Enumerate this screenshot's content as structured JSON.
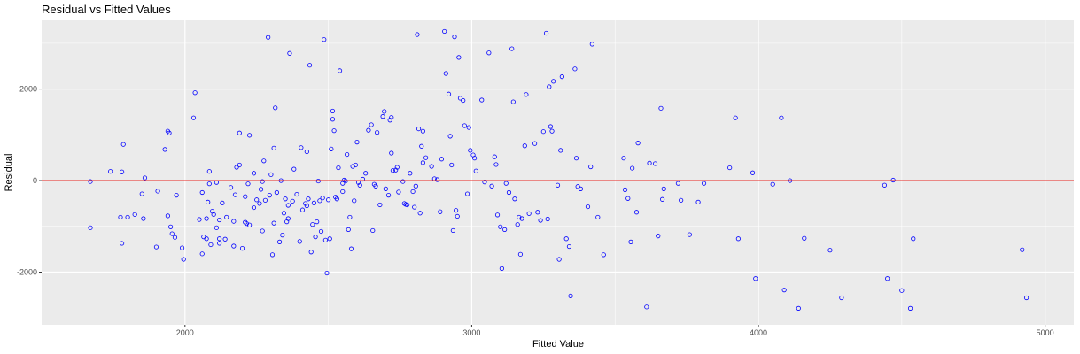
{
  "chart_data": {
    "type": "scatter",
    "title": "Residual vs Fitted Values",
    "xlabel": "Fitted Value",
    "ylabel": "Residual",
    "xlim": [
      1500,
      5100
    ],
    "ylim": [
      -3150,
      3500
    ],
    "x_ticks": [
      2000,
      3000,
      4000,
      5000
    ],
    "x_tick_labels": [
      "2000",
      "3000",
      "4000",
      "5000"
    ],
    "y_ticks": [
      -2000,
      0,
      2000
    ],
    "y_tick_labels": [
      "-2000",
      "0",
      "2000"
    ],
    "grid": true,
    "legend": "none",
    "reference_line": {
      "y": 0,
      "color": "#e8231e"
    },
    "colors": {
      "points": "#0000ff",
      "reference_line": "#e8231e",
      "panel": "#ebebeb",
      "grid": "#ffffff"
    },
    "points": [
      [
        1670,
        -20
      ],
      [
        1670,
        -1030
      ],
      [
        1740,
        200
      ],
      [
        1780,
        190
      ],
      [
        1775,
        -800
      ],
      [
        1780,
        -1370
      ],
      [
        1785,
        790
      ],
      [
        1800,
        -800
      ],
      [
        1825,
        -740
      ],
      [
        1850,
        -290
      ],
      [
        1855,
        -830
      ],
      [
        1860,
        60
      ],
      [
        1900,
        -1450
      ],
      [
        1905,
        -230
      ],
      [
        1930,
        680
      ],
      [
        1940,
        1080
      ],
      [
        1945,
        1040
      ],
      [
        1940,
        -770
      ],
      [
        1950,
        -1010
      ],
      [
        1955,
        -1160
      ],
      [
        1965,
        -1240
      ],
      [
        1970,
        -320
      ],
      [
        1990,
        -1470
      ],
      [
        1995,
        -1720
      ],
      [
        2030,
        1370
      ],
      [
        2035,
        1920
      ],
      [
        2050,
        -850
      ],
      [
        2060,
        -260
      ],
      [
        2060,
        -1600
      ],
      [
        2065,
        -1230
      ],
      [
        2075,
        -830
      ],
      [
        2075,
        -1270
      ],
      [
        2080,
        -470
      ],
      [
        2085,
        -70
      ],
      [
        2085,
        200
      ],
      [
        2090,
        -1400
      ],
      [
        2095,
        -670
      ],
      [
        2100,
        -740
      ],
      [
        2110,
        -1030
      ],
      [
        2110,
        -40
      ],
      [
        2120,
        -860
      ],
      [
        2120,
        -1370
      ],
      [
        2120,
        -1270
      ],
      [
        2130,
        -490
      ],
      [
        2140,
        -1280
      ],
      [
        2145,
        -800
      ],
      [
        2160,
        -150
      ],
      [
        2170,
        -1430
      ],
      [
        2170,
        -890
      ],
      [
        2175,
        -310
      ],
      [
        2180,
        290
      ],
      [
        2190,
        340
      ],
      [
        2190,
        1040
      ],
      [
        2200,
        -1480
      ],
      [
        2210,
        -910
      ],
      [
        2210,
        -350
      ],
      [
        2215,
        -940
      ],
      [
        2220,
        -70
      ],
      [
        2225,
        990
      ],
      [
        2225,
        -970
      ],
      [
        2240,
        160
      ],
      [
        2240,
        -590
      ],
      [
        2250,
        -420
      ],
      [
        2260,
        -500
      ],
      [
        2265,
        -190
      ],
      [
        2270,
        -1100
      ],
      [
        2270,
        -20
      ],
      [
        2275,
        430
      ],
      [
        2280,
        -430
      ],
      [
        2290,
        3130
      ],
      [
        2295,
        -320
      ],
      [
        2300,
        130
      ],
      [
        2305,
        -1620
      ],
      [
        2310,
        710
      ],
      [
        2310,
        -930
      ],
      [
        2315,
        1590
      ],
      [
        2320,
        -260
      ],
      [
        2330,
        -1340
      ],
      [
        2335,
        0
      ],
      [
        2340,
        -1190
      ],
      [
        2345,
        -710
      ],
      [
        2350,
        -400
      ],
      [
        2355,
        -900
      ],
      [
        2360,
        -830
      ],
      [
        2365,
        2780
      ],
      [
        2360,
        -540
      ],
      [
        2375,
        -450
      ],
      [
        2380,
        250
      ],
      [
        2390,
        -300
      ],
      [
        2400,
        -1330
      ],
      [
        2405,
        720
      ],
      [
        2410,
        -640
      ],
      [
        2420,
        -500
      ],
      [
        2425,
        -550
      ],
      [
        2425,
        630
      ],
      [
        2430,
        -400
      ],
      [
        2435,
        2520
      ],
      [
        2440,
        -1560
      ],
      [
        2445,
        -960
      ],
      [
        2450,
        -490
      ],
      [
        2455,
        -1230
      ],
      [
        2460,
        -900
      ],
      [
        2465,
        -10
      ],
      [
        2470,
        -440
      ],
      [
        2475,
        -1110
      ],
      [
        2480,
        -380
      ],
      [
        2485,
        3080
      ],
      [
        2490,
        -1300
      ],
      [
        2495,
        -2020
      ],
      [
        2500,
        -420
      ],
      [
        2505,
        -1270
      ],
      [
        2510,
        690
      ],
      [
        2515,
        1520
      ],
      [
        2515,
        1340
      ],
      [
        2520,
        1090
      ],
      [
        2525,
        -360
      ],
      [
        2530,
        -400
      ],
      [
        2535,
        280
      ],
      [
        2540,
        2400
      ],
      [
        2550,
        -240
      ],
      [
        2550,
        -60
      ],
      [
        2555,
        10
      ],
      [
        2560,
        -10
      ],
      [
        2565,
        570
      ],
      [
        2570,
        -1070
      ],
      [
        2575,
        -800
      ],
      [
        2580,
        -1490
      ],
      [
        2585,
        310
      ],
      [
        2590,
        -440
      ],
      [
        2595,
        340
      ],
      [
        2600,
        840
      ],
      [
        2605,
        -40
      ],
      [
        2610,
        -100
      ],
      [
        2620,
        30
      ],
      [
        2630,
        160
      ],
      [
        2640,
        1100
      ],
      [
        2650,
        1220
      ],
      [
        2655,
        -1090
      ],
      [
        2660,
        -80
      ],
      [
        2665,
        -120
      ],
      [
        2670,
        1050
      ],
      [
        2680,
        -530
      ],
      [
        2690,
        1400
      ],
      [
        2695,
        1510
      ],
      [
        2700,
        -180
      ],
      [
        2710,
        -320
      ],
      [
        2715,
        1320
      ],
      [
        2720,
        1380
      ],
      [
        2720,
        600
      ],
      [
        2725,
        220
      ],
      [
        2735,
        230
      ],
      [
        2740,
        290
      ],
      [
        2745,
        -250
      ],
      [
        2760,
        -20
      ],
      [
        2765,
        -500
      ],
      [
        2770,
        -520
      ],
      [
        2775,
        -530
      ],
      [
        2785,
        160
      ],
      [
        2795,
        -240
      ],
      [
        2800,
        -580
      ],
      [
        2805,
        -120
      ],
      [
        2810,
        3190
      ],
      [
        2815,
        1130
      ],
      [
        2820,
        -710
      ],
      [
        2825,
        750
      ],
      [
        2830,
        1080
      ],
      [
        2830,
        390
      ],
      [
        2840,
        500
      ],
      [
        2860,
        310
      ],
      [
        2870,
        40
      ],
      [
        2880,
        20
      ],
      [
        2890,
        -680
      ],
      [
        2895,
        470
      ],
      [
        2905,
        3260
      ],
      [
        2910,
        2340
      ],
      [
        2920,
        1890
      ],
      [
        2925,
        970
      ],
      [
        2930,
        340
      ],
      [
        2935,
        -1090
      ],
      [
        2940,
        3140
      ],
      [
        2945,
        -650
      ],
      [
        2950,
        -780
      ],
      [
        2955,
        2690
      ],
      [
        2960,
        1800
      ],
      [
        2970,
        1750
      ],
      [
        2975,
        1200
      ],
      [
        2985,
        -290
      ],
      [
        2990,
        1160
      ],
      [
        2995,
        660
      ],
      [
        3005,
        560
      ],
      [
        3010,
        490
      ],
      [
        3015,
        210
      ],
      [
        3035,
        1760
      ],
      [
        3045,
        -30
      ],
      [
        3060,
        2790
      ],
      [
        3070,
        -120
      ],
      [
        3080,
        520
      ],
      [
        3085,
        350
      ],
      [
        3090,
        -750
      ],
      [
        3100,
        -1010
      ],
      [
        3105,
        -1920
      ],
      [
        3115,
        -1070
      ],
      [
        3120,
        -60
      ],
      [
        3130,
        -260
      ],
      [
        3140,
        2880
      ],
      [
        3145,
        1720
      ],
      [
        3150,
        -400
      ],
      [
        3160,
        -960
      ],
      [
        3165,
        -800
      ],
      [
        3170,
        -1610
      ],
      [
        3175,
        -830
      ],
      [
        3185,
        760
      ],
      [
        3190,
        1880
      ],
      [
        3200,
        -720
      ],
      [
        3220,
        810
      ],
      [
        3230,
        -690
      ],
      [
        3240,
        -870
      ],
      [
        3250,
        1070
      ],
      [
        3260,
        3220
      ],
      [
        3265,
        -840
      ],
      [
        3270,
        2050
      ],
      [
        3275,
        1180
      ],
      [
        3280,
        1080
      ],
      [
        3285,
        2170
      ],
      [
        3300,
        -100
      ],
      [
        3305,
        -1720
      ],
      [
        3310,
        660
      ],
      [
        3315,
        2270
      ],
      [
        3330,
        -1270
      ],
      [
        3340,
        -1440
      ],
      [
        3345,
        -2520
      ],
      [
        3360,
        2440
      ],
      [
        3365,
        490
      ],
      [
        3370,
        -130
      ],
      [
        3380,
        -180
      ],
      [
        3405,
        -570
      ],
      [
        3415,
        300
      ],
      [
        3420,
        2980
      ],
      [
        3440,
        -800
      ],
      [
        3460,
        -1620
      ],
      [
        3530,
        490
      ],
      [
        3535,
        -200
      ],
      [
        3545,
        -390
      ],
      [
        3555,
        -1340
      ],
      [
        3560,
        270
      ],
      [
        3575,
        -690
      ],
      [
        3580,
        820
      ],
      [
        3610,
        -2760
      ],
      [
        3620,
        380
      ],
      [
        3640,
        370
      ],
      [
        3650,
        -1210
      ],
      [
        3660,
        1580
      ],
      [
        3665,
        -410
      ],
      [
        3670,
        -180
      ],
      [
        3720,
        -60
      ],
      [
        3730,
        -430
      ],
      [
        3760,
        -1180
      ],
      [
        3790,
        -470
      ],
      [
        3810,
        -60
      ],
      [
        3900,
        280
      ],
      [
        3920,
        1370
      ],
      [
        3930,
        -1270
      ],
      [
        3980,
        170
      ],
      [
        3990,
        -2140
      ],
      [
        4050,
        -80
      ],
      [
        4080,
        1370
      ],
      [
        4090,
        -2390
      ],
      [
        4110,
        0
      ],
      [
        4140,
        -2790
      ],
      [
        4160,
        -1260
      ],
      [
        4250,
        -1520
      ],
      [
        4290,
        -2560
      ],
      [
        4920,
        -1510
      ],
      [
        4935,
        -2560
      ],
      [
        4440,
        -100
      ],
      [
        4450,
        -2140
      ],
      [
        4470,
        10
      ],
      [
        4500,
        -2400
      ],
      [
        4530,
        -2790
      ],
      [
        4540,
        -1270
      ]
    ]
  }
}
